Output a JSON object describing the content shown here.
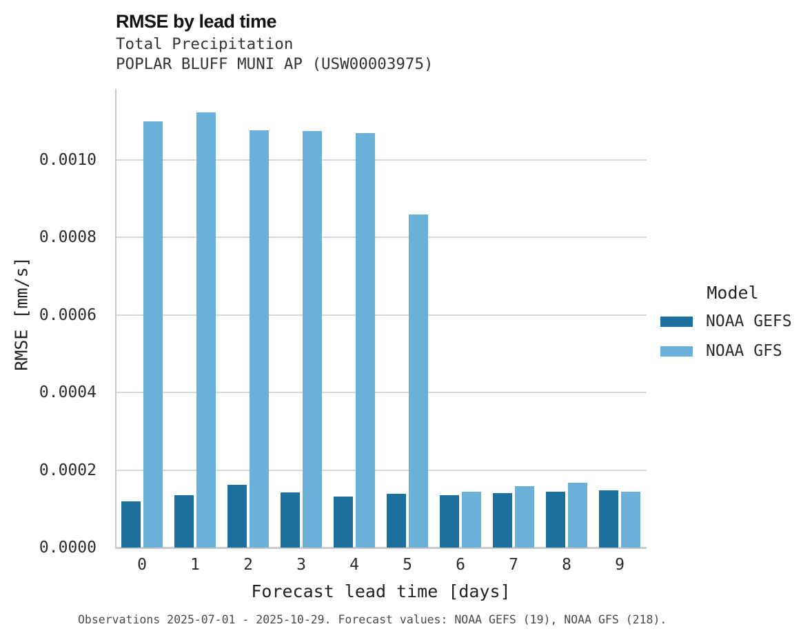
{
  "chart_data": {
    "type": "bar",
    "title": "RMSE by lead time",
    "subtitle": "Total Precipitation",
    "station": "POPLAR BLUFF MUNI AP (USW00003975)",
    "categories": [
      "0",
      "1",
      "2",
      "3",
      "4",
      "5",
      "6",
      "7",
      "8",
      "9"
    ],
    "series": [
      {
        "name": "NOAA GEFS",
        "color": "#1d6f9e",
        "values": [
          0.00012,
          0.000135,
          0.000162,
          0.000143,
          0.000132,
          0.000138,
          0.000136,
          0.000141,
          0.000145,
          0.000147
        ]
      },
      {
        "name": "NOAA GFS",
        "color": "#6bb0d8",
        "values": [
          0.0011,
          0.001123,
          0.001077,
          0.001075,
          0.00107,
          0.00086,
          0.000145,
          0.000158,
          0.000168,
          0.000145
        ]
      }
    ],
    "xlabel": "Forecast lead time [days]",
    "ylabel": "RMSE [mm/s]",
    "ylim": [
      0,
      0.001183
    ],
    "yticks": [
      0,
      0.0002,
      0.0004,
      0.0006,
      0.0008,
      0.001
    ],
    "ytick_labels": [
      "0.0000",
      "0.0002",
      "0.0004",
      "0.0006",
      "0.0008",
      "0.0010"
    ],
    "legend_title": "Model",
    "legend_position": "right",
    "grid": true
  },
  "footnote": "Observations 2025-07-01 - 2025-10-29. Forecast values: NOAA GEFS (19), NOAA GFS (218)."
}
